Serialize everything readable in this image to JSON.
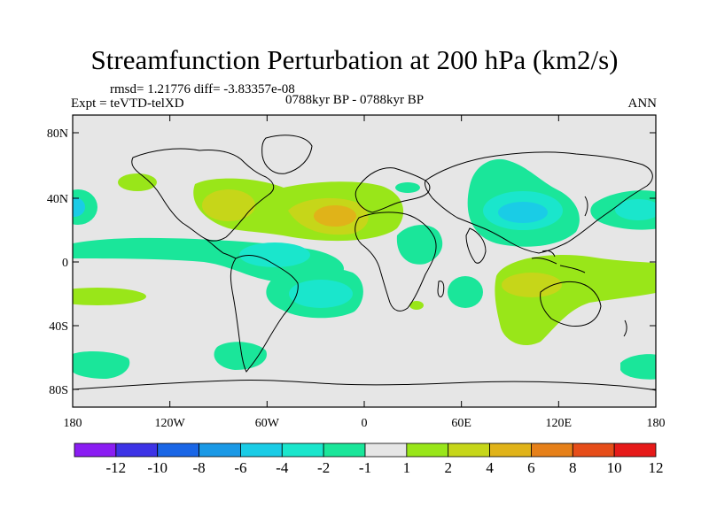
{
  "title": "Streamfunction Perturbation at 200 hPa (km2/s)",
  "stats": "rmsd= 1.21776 diff= -3.83357e-08",
  "experiment": "Expt = teVTD-telXD",
  "period": "0788kyr BP - 0788kyr BP",
  "season": "ANN",
  "lat_ticks": [
    "80N",
    "40N",
    "0",
    "40S",
    "80S"
  ],
  "lon_ticks": [
    "180",
    "120W",
    "60W",
    "0",
    "60E",
    "120E",
    "180"
  ],
  "colorbar": {
    "labels": [
      "-12",
      "-10",
      "-8",
      "-6",
      "-4",
      "-2",
      "-1",
      "1",
      "2",
      "4",
      "6",
      "8",
      "10",
      "12"
    ],
    "colors": [
      "#8a1df2",
      "#3d33e6",
      "#1a66e6",
      "#1a99e6",
      "#1acce6",
      "#1ae6cc",
      "#1ae69a",
      "#e6e6e6",
      "#99e619",
      "#c6d619",
      "#e0b319",
      "#e68019",
      "#e64d19",
      "#e61a19"
    ]
  },
  "colors": {
    "ocean_neutral": "#e6e6e6",
    "neg_weak": "#1ae69a",
    "neg_mid": "#1ae6cc",
    "neg_strong": "#1acce6",
    "pos_weak": "#99e619",
    "pos_mid": "#c6d619",
    "pos_strong": "#e0b319"
  }
}
